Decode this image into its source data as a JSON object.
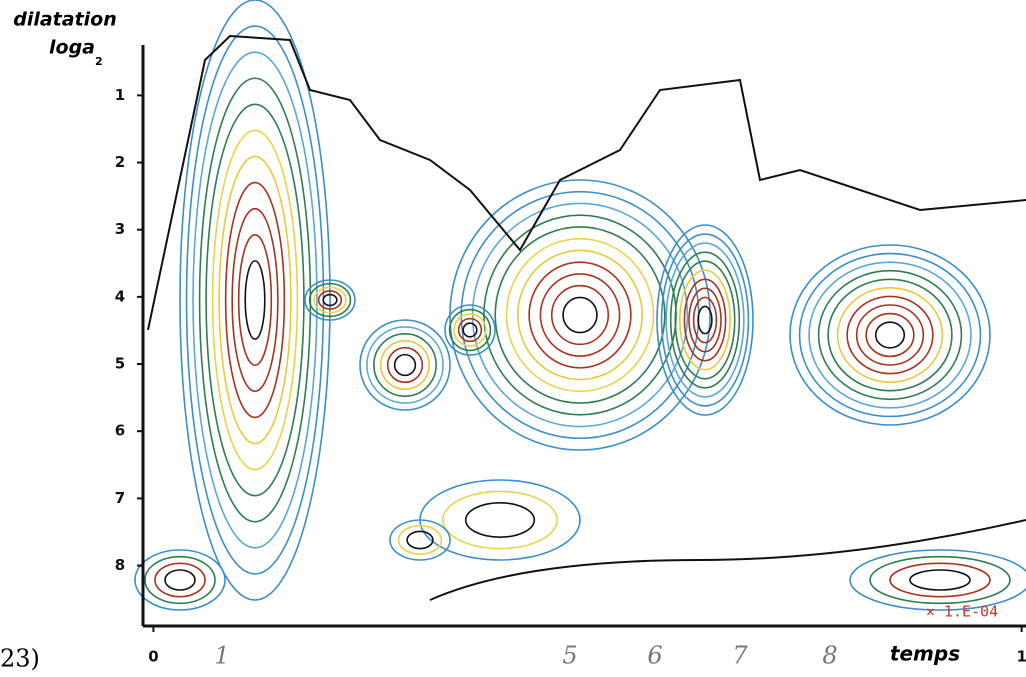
{
  "chart_data": {
    "type": "contour",
    "y_label": "dilatation",
    "y_label_2": "loga",
    "y_label_2_subscript": "2",
    "x_label": "temps",
    "figure_label": "23)",
    "scale_note": "× 1.E-04",
    "annotations": [
      "1",
      "5",
      "6",
      "7",
      "8"
    ],
    "ylim": [
      8.9,
      0.25
    ],
    "yticks": [
      1,
      2,
      3,
      4,
      5,
      6,
      7,
      8
    ],
    "xlim": [
      -0.012,
      1.005
    ],
    "xticks": [
      0,
      1
    ]
  }
}
